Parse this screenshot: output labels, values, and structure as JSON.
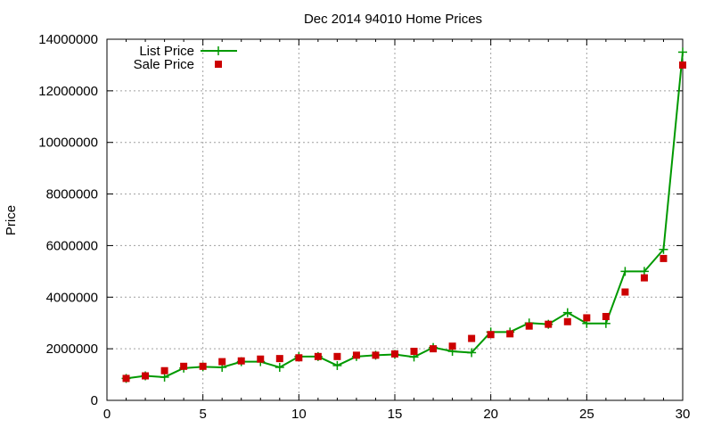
{
  "chart_data": {
    "type": "line",
    "title": "Dec 2014 94010 Home Prices",
    "xlabel": "",
    "ylabel": "Price",
    "xlim": [
      0,
      30
    ],
    "ylim": [
      0,
      14000000
    ],
    "x_ticks": [
      0,
      5,
      10,
      15,
      20,
      25,
      30
    ],
    "y_ticks": [
      0,
      2000000,
      4000000,
      6000000,
      8000000,
      10000000,
      12000000,
      14000000
    ],
    "grid": true,
    "legend_position": "top-left",
    "x": [
      1,
      2,
      3,
      4,
      5,
      6,
      7,
      8,
      9,
      10,
      11,
      12,
      13,
      14,
      15,
      16,
      17,
      18,
      19,
      20,
      21,
      22,
      23,
      24,
      25,
      26,
      27,
      28,
      29,
      30
    ],
    "series": [
      {
        "name": "List Price",
        "style": "linespoints",
        "marker": "plus",
        "color": "#009900",
        "values": [
          850000,
          950000,
          900000,
          1250000,
          1300000,
          1280000,
          1500000,
          1500000,
          1280000,
          1700000,
          1700000,
          1350000,
          1700000,
          1750000,
          1780000,
          1680000,
          2050000,
          1900000,
          1850000,
          2650000,
          2650000,
          3000000,
          2950000,
          3400000,
          2980000,
          2980000,
          5000000,
          5000000,
          5850000,
          13500000
        ]
      },
      {
        "name": "Sale Price",
        "style": "points",
        "marker": "square",
        "color": "#cc0000",
        "values": [
          850000,
          950000,
          1150000,
          1320000,
          1320000,
          1500000,
          1530000,
          1600000,
          1620000,
          1650000,
          1700000,
          1700000,
          1750000,
          1750000,
          1800000,
          1900000,
          2000000,
          2100000,
          2400000,
          2550000,
          2580000,
          2880000,
          2950000,
          3050000,
          3200000,
          3250000,
          4200000,
          4750000,
          5500000,
          13000000
        ]
      }
    ]
  }
}
